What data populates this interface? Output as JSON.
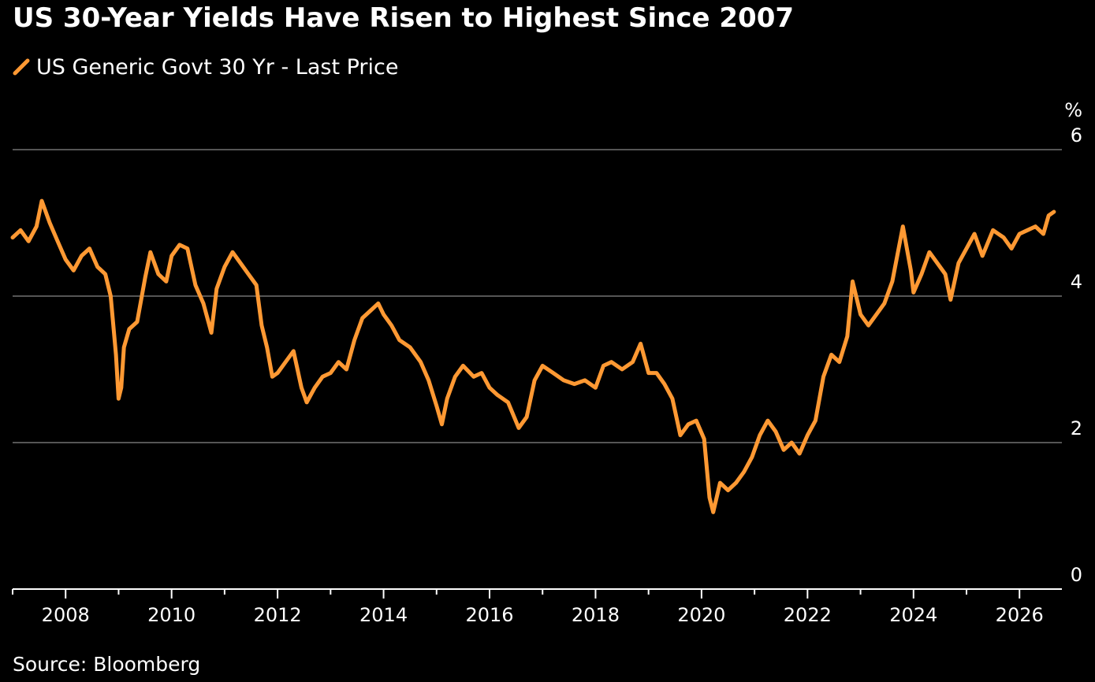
{
  "title": "US 30-Year Yields Have Risen to Highest Since 2007",
  "legend": {
    "label": "US Generic Govt 30 Yr - Last Price",
    "icon": "line-swatch-icon"
  },
  "source": "Source: Bloomberg",
  "colors": {
    "background": "#000000",
    "series": "#ff9933",
    "grid": "#555555",
    "axis": "#ffffff",
    "text": "#ffffff"
  },
  "chart_data": {
    "type": "line",
    "title": "US 30-Year Yields Have Risen to Highest Since 2007",
    "xlabel": "",
    "ylabel": "%",
    "unit_label": "%",
    "xlim": [
      2007.0,
      2026.8
    ],
    "ylim": [
      0,
      6
    ],
    "grid": true,
    "grid_axis": "y",
    "y_axis_side": "right",
    "legend_position": "top-left",
    "x_ticks": [
      2008,
      2010,
      2012,
      2014,
      2016,
      2018,
      2020,
      2022,
      2024,
      2026
    ],
    "x_tick_labels": [
      "2008",
      "2010",
      "2012",
      "2014",
      "2016",
      "2018",
      "2020",
      "2022",
      "2024",
      "2026"
    ],
    "y_ticks": [
      0,
      2,
      4,
      6
    ],
    "y_tick_labels": [
      "0",
      "2",
      "4",
      "6"
    ],
    "series": [
      {
        "name": "US Generic Govt 30 Yr - Last Price",
        "x": [
          2007.0,
          2007.15,
          2007.3,
          2007.45,
          2007.55,
          2007.7,
          2007.85,
          2008.0,
          2008.15,
          2008.3,
          2008.45,
          2008.6,
          2008.75,
          2008.85,
          2008.95,
          2009.0,
          2009.05,
          2009.1,
          2009.2,
          2009.35,
          2009.5,
          2009.6,
          2009.75,
          2009.9,
          2010.0,
          2010.15,
          2010.3,
          2010.45,
          2010.6,
          2010.75,
          2010.85,
          2011.0,
          2011.15,
          2011.3,
          2011.45,
          2011.6,
          2011.7,
          2011.8,
          2011.9,
          2012.0,
          2012.15,
          2012.3,
          2012.45,
          2012.55,
          2012.7,
          2012.85,
          2013.0,
          2013.15,
          2013.3,
          2013.45,
          2013.6,
          2013.75,
          2013.9,
          2014.0,
          2014.15,
          2014.3,
          2014.5,
          2014.7,
          2014.85,
          2015.0,
          2015.1,
          2015.2,
          2015.35,
          2015.5,
          2015.7,
          2015.85,
          2016.0,
          2016.15,
          2016.35,
          2016.55,
          2016.7,
          2016.85,
          2017.0,
          2017.2,
          2017.4,
          2017.6,
          2017.8,
          2018.0,
          2018.15,
          2018.3,
          2018.5,
          2018.7,
          2018.85,
          2019.0,
          2019.15,
          2019.3,
          2019.45,
          2019.6,
          2019.75,
          2019.9,
          2020.05,
          2020.15,
          2020.22,
          2020.35,
          2020.5,
          2020.65,
          2020.8,
          2020.95,
          2021.1,
          2021.25,
          2021.4,
          2021.55,
          2021.7,
          2021.85,
          2022.0,
          2022.15,
          2022.3,
          2022.45,
          2022.6,
          2022.75,
          2022.85,
          2023.0,
          2023.15,
          2023.3,
          2023.45,
          2023.6,
          2023.8,
          2023.95,
          2024.0,
          2024.15,
          2024.3,
          2024.45,
          2024.6,
          2024.7,
          2024.85,
          2025.0,
          2025.15,
          2025.3,
          2025.5,
          2025.7,
          2025.85,
          2026.0,
          2026.15,
          2026.3,
          2026.45,
          2026.55,
          2026.65
        ],
        "values": [
          4.8,
          4.9,
          4.75,
          4.95,
          5.3,
          5.0,
          4.75,
          4.5,
          4.35,
          4.55,
          4.65,
          4.4,
          4.3,
          4.0,
          3.2,
          2.6,
          2.75,
          3.3,
          3.55,
          3.65,
          4.25,
          4.6,
          4.3,
          4.2,
          4.55,
          4.7,
          4.65,
          4.15,
          3.9,
          3.5,
          4.1,
          4.4,
          4.6,
          4.45,
          4.3,
          4.15,
          3.6,
          3.3,
          2.9,
          2.95,
          3.1,
          3.25,
          2.75,
          2.55,
          2.75,
          2.9,
          2.95,
          3.1,
          3.0,
          3.4,
          3.7,
          3.8,
          3.9,
          3.75,
          3.6,
          3.4,
          3.3,
          3.1,
          2.85,
          2.5,
          2.25,
          2.6,
          2.9,
          3.05,
          2.9,
          2.95,
          2.75,
          2.65,
          2.55,
          2.2,
          2.35,
          2.85,
          3.05,
          2.95,
          2.85,
          2.8,
          2.85,
          2.75,
          3.05,
          3.1,
          3.0,
          3.1,
          3.35,
          2.95,
          2.95,
          2.8,
          2.6,
          2.1,
          2.25,
          2.3,
          2.05,
          1.25,
          1.05,
          1.45,
          1.35,
          1.45,
          1.6,
          1.8,
          2.1,
          2.3,
          2.15,
          1.9,
          2.0,
          1.85,
          2.1,
          2.3,
          2.9,
          3.2,
          3.1,
          3.45,
          4.2,
          3.75,
          3.6,
          3.75,
          3.9,
          4.2,
          4.95,
          4.35,
          4.05,
          4.3,
          4.6,
          4.45,
          4.3,
          3.95,
          4.45,
          4.65,
          4.85,
          4.55,
          4.9,
          4.8,
          4.65,
          4.85,
          4.9,
          4.95,
          4.85,
          5.1,
          5.15
        ]
      }
    ]
  }
}
